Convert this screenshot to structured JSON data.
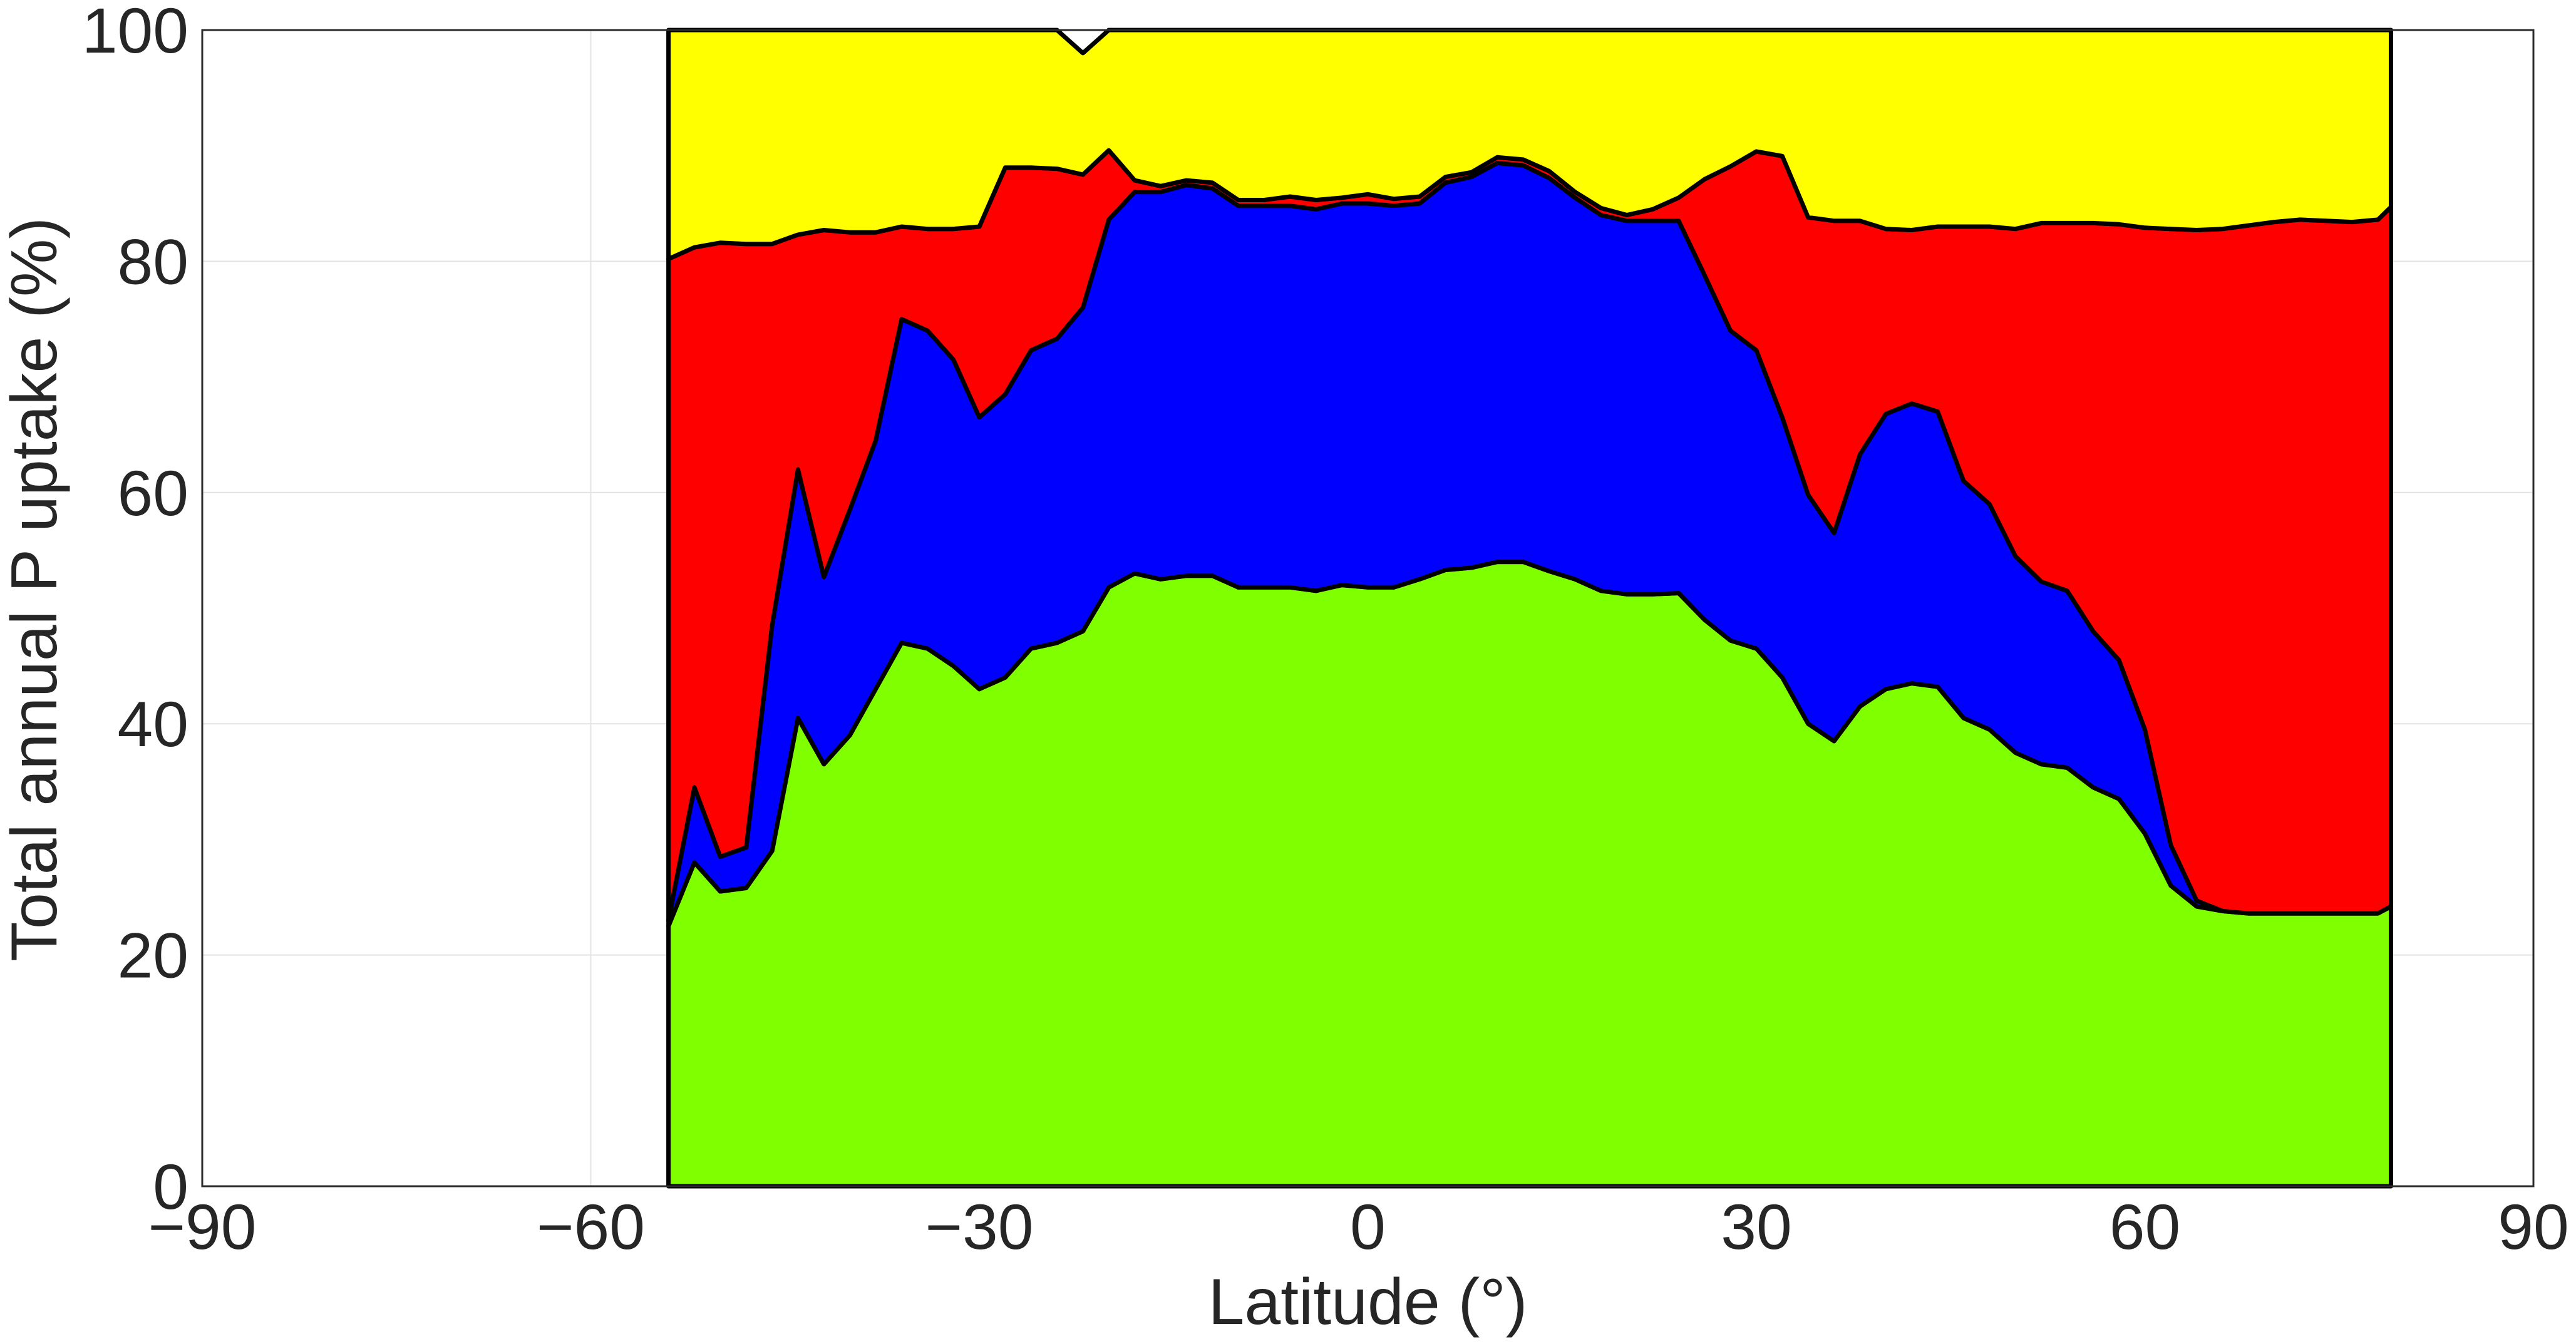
{
  "chart_data": {
    "type": "area",
    "stacked": true,
    "title": "",
    "xlabel": "Latitude (°)",
    "ylabel": "Total annual P uptake (%)",
    "xlim": [
      -90,
      90
    ],
    "ylim": [
      0,
      100
    ],
    "xticks": [
      -90,
      -60,
      -30,
      0,
      30,
      60,
      90
    ],
    "xtick_labels": [
      "−90",
      "−60",
      "−30",
      "0",
      "30",
      "60",
      "90"
    ],
    "yticks": [
      0,
      20,
      40,
      60,
      80,
      100
    ],
    "ytick_labels": [
      "0",
      "20",
      "40",
      "60",
      "80",
      "100"
    ],
    "grid": true,
    "legend": "none",
    "x": [
      -54,
      -52,
      -50,
      -48,
      -46,
      -44,
      -42,
      -40,
      -38,
      -36,
      -34,
      -32,
      -30,
      -28,
      -26,
      -24,
      -22,
      -20,
      -18,
      -16,
      -14,
      -12,
      -10,
      -8,
      -6,
      -4,
      -2,
      0,
      2,
      4,
      6,
      8,
      10,
      12,
      14,
      16,
      18,
      20,
      22,
      24,
      26,
      28,
      30,
      32,
      34,
      36,
      38,
      40,
      42,
      44,
      46,
      48,
      50,
      52,
      54,
      56,
      58,
      60,
      62,
      64,
      66,
      68,
      70,
      72,
      74,
      76,
      78,
      79
    ],
    "series": [
      {
        "color": "#7fff00",
        "values": [
          22.5,
          28,
          25.5,
          25.8,
          29,
          40.5,
          36.5,
          39,
          43,
          47,
          46.5,
          45,
          43,
          44,
          46.5,
          47,
          48,
          51.8,
          53,
          52.5,
          52.8,
          52.8,
          51.8,
          51.8,
          51.8,
          51.5,
          52,
          51.8,
          51.8,
          52.5,
          53.3,
          53.5,
          54,
          54,
          53.2,
          52.5,
          51.5,
          51.2,
          51.2,
          51.3,
          49,
          47.2,
          46.5,
          44,
          40,
          38.5,
          41.5,
          43,
          43.5,
          43.2,
          40.5,
          39.5,
          37.5,
          36.5,
          36.2,
          34.5,
          33.5,
          30.5,
          26,
          24.2,
          23.8,
          23.6,
          23.6,
          23.6,
          23.6,
          23.6,
          23.6,
          24.2
        ]
      },
      {
        "color": "#0000ff",
        "values": [
          0.5,
          6.5,
          3,
          3.5,
          19.5,
          21.5,
          16.2,
          19.5,
          21.5,
          28,
          27.5,
          26.5,
          23.5,
          24.5,
          25.8,
          26.3,
          28,
          31.8,
          33,
          33.5,
          33.8,
          33.5,
          33,
          33,
          33,
          33,
          33,
          33.2,
          33,
          32.5,
          33.5,
          33.8,
          34.5,
          34.3,
          34,
          33,
          32.5,
          32.3,
          32.3,
          32.2,
          29.8,
          26.8,
          25.8,
          22.5,
          19.8,
          18,
          21.8,
          23.8,
          24.2,
          23.8,
          20.5,
          19.5,
          17,
          15.8,
          15.3,
          13.5,
          12,
          9,
          3.5,
          0.5,
          0,
          0,
          0,
          0,
          0,
          0,
          0,
          0
        ]
      },
      {
        "color": "#ff0000",
        "values": [
          57.2,
          46.7,
          53.1,
          52.2,
          33,
          20.3,
          30,
          24,
          18,
          8,
          8.8,
          11.3,
          16.5,
          19.6,
          15.8,
          14.7,
          11.5,
          6,
          1,
          0.5,
          0.4,
          0.5,
          0.5,
          0.5,
          0.8,
          0.8,
          0.5,
          0.8,
          0.6,
          0.6,
          0.5,
          0.4,
          0.5,
          0.5,
          0.6,
          0.5,
          0.6,
          0.5,
          1,
          2,
          8.3,
          14.2,
          17.2,
          22.6,
          24,
          27,
          20.2,
          16,
          15,
          16,
          22,
          24,
          28.3,
          31,
          31.8,
          35.3,
          37.7,
          43.4,
          53.3,
          58,
          59,
          59.5,
          59.8,
          60,
          59.9,
          59.8,
          60,
          60.5
        ]
      },
      {
        "color": "#ffff00",
        "values": [
          19.8,
          18.8,
          18.4,
          18.5,
          18.5,
          17.7,
          17.3,
          17.5,
          17.5,
          17,
          17.2,
          17.2,
          17,
          11.9,
          11.9,
          12,
          10.5,
          10.4,
          13,
          13.5,
          13,
          13.2,
          14.7,
          14.7,
          14.4,
          14.7,
          14.5,
          14.2,
          14.6,
          14.4,
          12.7,
          12.3,
          11,
          11.2,
          12.2,
          14,
          15.4,
          16,
          15.5,
          14.5,
          12.9,
          11.8,
          10.5,
          10.9,
          16.2,
          16.5,
          16.5,
          17.2,
          17.3,
          17,
          17,
          17,
          17.2,
          16.7,
          16.7,
          16.7,
          16.8,
          17.1,
          17.2,
          17.3,
          17.2,
          16.9,
          16.6,
          16.4,
          16.5,
          16.6,
          16.4,
          15.3
        ]
      }
    ]
  }
}
